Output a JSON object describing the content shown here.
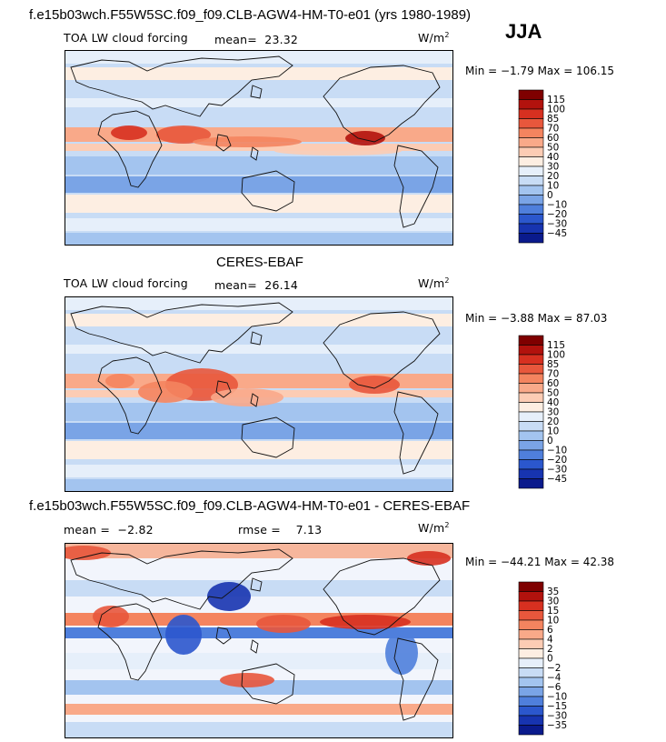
{
  "header": {
    "title": "f.e15b03wch.F55W5SC.f09_f09.CLB-AGW4-HM-T0-e01 (yrs 1980-1989)",
    "season": "JJA"
  },
  "panels": [
    {
      "title": "",
      "subtitle_left": "TOA LW cloud forcing",
      "stat_label": "mean=",
      "stat_value": "23.32",
      "stat2_label": "",
      "stat2_value": "",
      "units_base": "W/m",
      "units_exp": "2",
      "minmax": "Min =   −1.79  Max = 106.15",
      "colorbar_labels": [
        "115",
        "100",
        "85",
        "70",
        "60",
        "50",
        "40",
        "30",
        "20",
        "10",
        "0",
        "−10",
        "−20",
        "−30",
        "−45"
      ]
    },
    {
      "title": "CERES-EBAF",
      "subtitle_left": "TOA LW cloud forcing",
      "stat_label": "mean=",
      "stat_value": "26.14",
      "stat2_label": "",
      "stat2_value": "",
      "units_base": "W/m",
      "units_exp": "2",
      "minmax": "Min =  −3.88  Max =  87.03",
      "colorbar_labels": [
        "115",
        "100",
        "85",
        "70",
        "60",
        "50",
        "40",
        "30",
        "20",
        "10",
        "0",
        "−10",
        "−20",
        "−30",
        "−45"
      ]
    },
    {
      "title": "f.e15b03wch.F55W5SC.f09_f09.CLB-AGW4-HM-T0-e01 - CERES-EBAF",
      "subtitle_left": "",
      "stat_label": "mean =",
      "stat_value": "−2.82",
      "stat2_label": "rmse =",
      "stat2_value": "7.13",
      "units_base": "W/m",
      "units_exp": "2",
      "minmax": "Min = −44.21  Max =  42.38",
      "colorbar_labels": [
        "35",
        "30",
        "15",
        "10",
        "6",
        "4",
        "2",
        "0",
        "−2",
        "−4",
        "−6",
        "−10",
        "−15",
        "−30",
        "−35"
      ]
    }
  ],
  "colors": {
    "scale": [
      "#7f0000",
      "#b2120d",
      "#d73020",
      "#e8573c",
      "#f4845f",
      "#f9a989",
      "#fcccb4",
      "#fdeee2",
      "#e6effa",
      "#c8dcf5",
      "#a3c4ef",
      "#7aa4e6",
      "#4f7fdc",
      "#2b57cd",
      "#1734b0",
      "#0a1a8c",
      "#03035c"
    ],
    "coast": "#111111"
  },
  "chart_data": [
    {
      "type": "heatmap",
      "title": "TOA LW cloud forcing",
      "mean": 23.32,
      "min": -1.79,
      "max": 106.15,
      "units": "W/m2",
      "colorbar_levels": [
        115,
        100,
        85,
        70,
        60,
        50,
        40,
        30,
        20,
        10,
        0,
        -10,
        -20,
        -30,
        -45
      ]
    },
    {
      "type": "heatmap",
      "title": "CERES-EBAF",
      "mean": 26.14,
      "min": -3.88,
      "max": 87.03,
      "units": "W/m2",
      "colorbar_levels": [
        115,
        100,
        85,
        70,
        60,
        50,
        40,
        30,
        20,
        10,
        0,
        -10,
        -20,
        -30,
        -45
      ]
    },
    {
      "type": "heatmap",
      "title": "f.e15b03wch.F55W5SC.f09_f09.CLB-AGW4-HM-T0-e01 - CERES-EBAF",
      "mean": -2.82,
      "rmse": 7.13,
      "min": -44.21,
      "max": 42.38,
      "units": "W/m2",
      "colorbar_levels": [
        35,
        30,
        15,
        10,
        6,
        4,
        2,
        0,
        -2,
        -4,
        -6,
        -10,
        -15,
        -30,
        -35
      ]
    }
  ]
}
